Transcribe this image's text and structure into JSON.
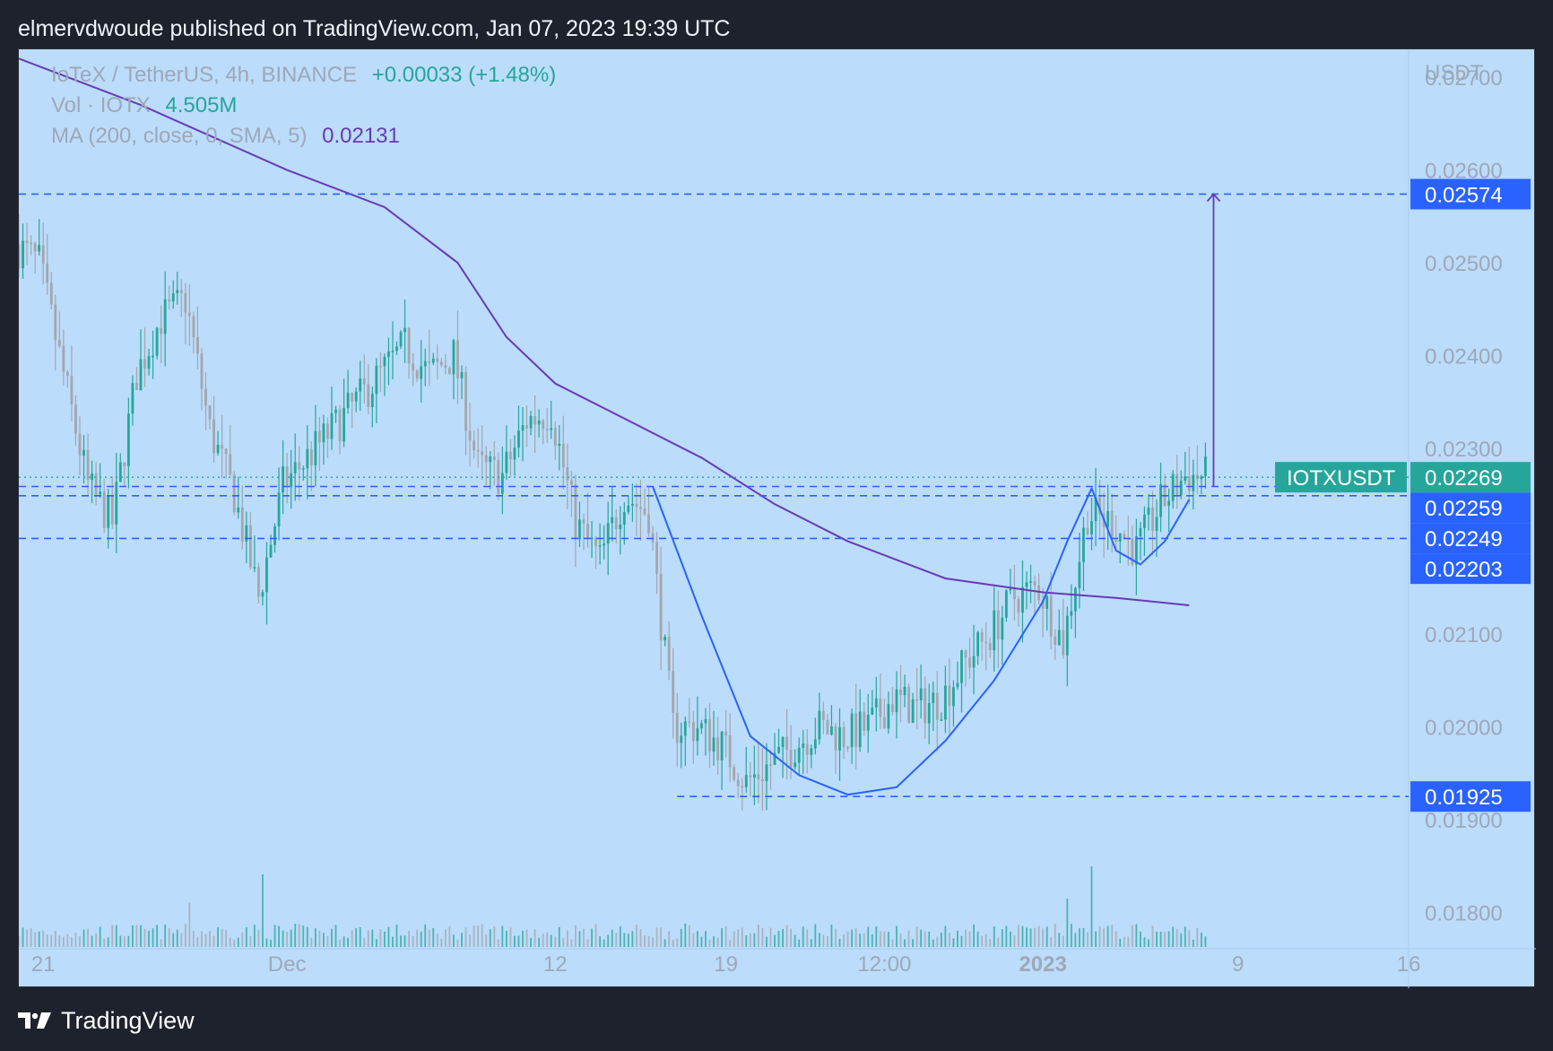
{
  "header": {
    "published": "elmervdwoude published on TradingView.com, Jan 07, 2023 19:39 UTC"
  },
  "legend": {
    "symbol": "IoTeX / TetherUS, 4h, BINANCE",
    "change": "+0.00033 (+1.48%)",
    "vol_label": "Vol · IOTX",
    "vol_value": "4.505M",
    "ma_label": "MA (200, close, 0, SMA, 5)",
    "ma_value": "0.02131"
  },
  "footer": {
    "brand": "TradingView"
  },
  "colors": {
    "background": "#bbdcfb",
    "up": "#26a69a",
    "down": "#a3a6ac",
    "ma": "#673ab7",
    "level_line": "#2962ff",
    "price_tag": "#26a69a",
    "label_bg": "#2962ff"
  },
  "chart_data": {
    "type": "candlestick",
    "symbol": "IOTXUSDT",
    "axis_unit": "USDT",
    "y_axis": {
      "ylim": [
        0.0176,
        0.0273
      ],
      "ticks": [
        0.027,
        0.026,
        0.025,
        0.024,
        0.023,
        0.022,
        0.021,
        0.02,
        0.019,
        0.018
      ],
      "tick_labels": [
        "0.02700",
        "0.02600",
        "0.02500",
        "0.02400",
        "0.02300",
        "0.02200",
        "0.02100",
        "0.02000",
        "0.01900",
        "0.01800"
      ]
    },
    "x_axis": {
      "date_range": [
        "2022-11-20",
        "2023-01-16"
      ],
      "ticks": [
        {
          "date": "2022-11-21",
          "label": "21",
          "bold": false
        },
        {
          "date": "2022-12-01",
          "label": "Dec",
          "bold": false
        },
        {
          "date": "2022-12-12",
          "label": "12",
          "bold": false
        },
        {
          "date": "2022-12-19",
          "label": "19",
          "bold": false
        },
        {
          "date": "2022-12-25T12:00",
          "label": "12:00",
          "bold": false
        },
        {
          "date": "2023-01-01",
          "label": "2023",
          "bold": true
        },
        {
          "date": "2023-01-09",
          "label": "9",
          "bold": false
        },
        {
          "date": "2023-01-16",
          "label": "16",
          "bold": false
        }
      ]
    },
    "price_path_anchors": [
      [
        "2022-11-20",
        0.0252
      ],
      [
        "2022-11-21",
        0.025
      ],
      [
        "2022-11-22",
        0.0238
      ],
      [
        "2022-11-23",
        0.0226
      ],
      [
        "2022-11-24",
        0.0222
      ],
      [
        "2022-11-25",
        0.0238
      ],
      [
        "2022-11-26",
        0.0244
      ],
      [
        "2022-11-27",
        0.0246
      ],
      [
        "2022-11-28",
        0.0232
      ],
      [
        "2022-11-29",
        0.0225
      ],
      [
        "2022-11-30",
        0.0214
      ],
      [
        "2022-12-01",
        0.0226
      ],
      [
        "2022-12-02",
        0.0229
      ],
      [
        "2022-12-03",
        0.0232
      ],
      [
        "2022-12-04",
        0.0235
      ],
      [
        "2022-12-05",
        0.0238
      ],
      [
        "2022-12-06",
        0.0241
      ],
      [
        "2022-12-07",
        0.0238
      ],
      [
        "2022-12-08",
        0.024
      ],
      [
        "2022-12-09",
        0.0228
      ],
      [
        "2022-12-10",
        0.0227
      ],
      [
        "2022-12-11",
        0.0233
      ],
      [
        "2022-12-12",
        0.0234
      ],
      [
        "2022-12-13",
        0.0222
      ],
      [
        "2022-12-14",
        0.0218
      ],
      [
        "2022-12-15",
        0.0225
      ],
      [
        "2022-12-16",
        0.0223
      ],
      [
        "2022-12-17",
        0.02
      ],
      [
        "2022-12-18",
        0.02
      ],
      [
        "2022-12-19",
        0.0198
      ],
      [
        "2022-12-20",
        0.0194
      ],
      [
        "2022-12-21",
        0.0196
      ],
      [
        "2022-12-22",
        0.0198
      ],
      [
        "2022-12-23",
        0.02
      ],
      [
        "2022-12-24",
        0.0199
      ],
      [
        "2022-12-25",
        0.02
      ],
      [
        "2022-12-26",
        0.0203
      ],
      [
        "2022-12-27",
        0.0202
      ],
      [
        "2022-12-28",
        0.0203
      ],
      [
        "2022-12-29",
        0.0207
      ],
      [
        "2022-12-30",
        0.021
      ],
      [
        "2022-12-31",
        0.0214
      ],
      [
        "2023-01-01",
        0.0215
      ],
      [
        "2023-01-02",
        0.0209
      ],
      [
        "2023-01-03",
        0.0223
      ],
      [
        "2023-01-04",
        0.0222
      ],
      [
        "2023-01-05",
        0.0219
      ],
      [
        "2023-01-06",
        0.0224
      ],
      [
        "2023-01-07",
        0.0227
      ]
    ],
    "ma_200": {
      "name": "MA (200, close, 0, SMA, 5)",
      "points": [
        [
          "2022-11-20",
          0.0272
        ],
        [
          "2022-11-25",
          0.0267
        ],
        [
          "2022-12-01",
          0.026
        ],
        [
          "2022-12-05",
          0.0256
        ],
        [
          "2022-12-08",
          0.025
        ],
        [
          "2022-12-10",
          0.0242
        ],
        [
          "2022-12-12",
          0.0237
        ],
        [
          "2022-12-15",
          0.0233
        ],
        [
          "2022-12-18",
          0.0229
        ],
        [
          "2022-12-21",
          0.0224
        ],
        [
          "2022-12-24",
          0.022
        ],
        [
          "2022-12-28",
          0.0216
        ],
        [
          "2023-01-01",
          0.02145
        ],
        [
          "2023-01-04",
          0.02139
        ],
        [
          "2023-01-07",
          0.02131
        ]
      ]
    },
    "horizontal_levels": [
      {
        "value": 0.02574,
        "label": "0.02574",
        "from": "2022-11-20"
      },
      {
        "value": 0.02259,
        "label": "0.02259",
        "from": "2022-11-20"
      },
      {
        "value": 0.02249,
        "label": "0.02249",
        "from": "2022-11-20"
      },
      {
        "value": 0.02203,
        "label": "0.02203",
        "from": "2022-11-20"
      },
      {
        "value": 0.01925,
        "label": "0.01925",
        "from": "2022-12-17"
      }
    ],
    "last_price": {
      "value": 0.02269,
      "symbol_label": "IOTXUSDT",
      "label": "0.02269"
    },
    "target_arrow": {
      "date": "2023-01-08",
      "from": 0.02259,
      "to": 0.02574
    },
    "cup_and_handle": {
      "points": [
        [
          "2022-12-16",
          0.02259
        ],
        [
          "2022-12-18",
          0.0212
        ],
        [
          "2022-12-20",
          0.0199
        ],
        [
          "2022-12-22",
          0.01948
        ],
        [
          "2022-12-24",
          0.01927
        ],
        [
          "2022-12-26",
          0.01935
        ],
        [
          "2022-12-28",
          0.01985
        ],
        [
          "2022-12-30",
          0.0205
        ],
        [
          "2023-01-01",
          0.02135
        ],
        [
          "2023-01-02",
          0.022
        ],
        [
          "2023-01-03",
          0.02257
        ],
        [
          "2023-01-04",
          0.0219
        ],
        [
          "2023-01-05",
          0.02175
        ],
        [
          "2023-01-06",
          0.022
        ],
        [
          "2023-01-07",
          0.02245
        ]
      ]
    },
    "volume_spikes": [
      {
        "date": "2022-11-27",
        "relative": 0.55
      },
      {
        "date": "2022-11-30",
        "relative": 0.9
      },
      {
        "date": "2023-01-03",
        "relative": 1.0
      },
      {
        "date": "2023-01-02",
        "relative": 0.6
      }
    ]
  }
}
